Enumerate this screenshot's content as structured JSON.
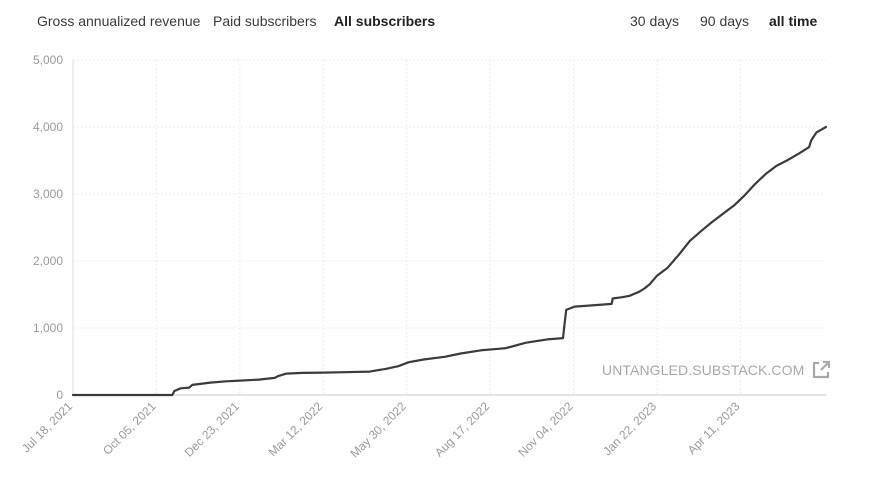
{
  "metric_tabs": [
    {
      "label": "Gross annualized revenue",
      "active": false
    },
    {
      "label": "Paid subscribers",
      "active": false
    },
    {
      "label": "All subscribers",
      "active": true
    }
  ],
  "range_tabs": [
    {
      "label": "30 days",
      "active": false
    },
    {
      "label": "90 days",
      "active": false
    },
    {
      "label": "all time",
      "active": true
    }
  ],
  "watermark": {
    "text": "UNTANGLED.SUBSTACK.COM",
    "icon": "external-link-icon"
  },
  "colors": {
    "line": "#3b3b3b",
    "grid": "#ececec",
    "tick_text": "#9a9a9a",
    "watermark": "#a8a8a8"
  },
  "chart_data": {
    "type": "line",
    "title": "",
    "xlabel": "",
    "ylabel": "",
    "ylim": [
      0,
      5000
    ],
    "yticks": [
      0,
      1000,
      2000,
      3000,
      4000,
      5000
    ],
    "ytick_labels": [
      "0",
      "1,000",
      "2,000",
      "3,000",
      "4,000",
      "5,000"
    ],
    "xlim": [
      "2021-07-18",
      "2023-07-01"
    ],
    "xticks": [
      "2021-07-18",
      "2021-10-05",
      "2021-12-23",
      "2022-03-12",
      "2022-05-30",
      "2022-08-17",
      "2022-11-04",
      "2023-01-22",
      "2023-04-11"
    ],
    "xtick_labels": [
      "Jul 18, 2021",
      "Oct 05, 2021",
      "Dec 23, 2021",
      "Mar 12, 2022",
      "May 30, 2022",
      "Aug 17, 2022",
      "Nov 04, 2022",
      "Jan 22, 2023",
      "Apr 11, 2023"
    ],
    "grid": true,
    "series": [
      {
        "x": [
          "2021-07-18",
          "2021-10-20",
          "2021-10-22",
          "2021-10-28",
          "2021-11-05",
          "2021-11-08",
          "2021-11-25",
          "2021-12-10",
          "2021-12-23",
          "2022-01-10",
          "2022-01-25",
          "2022-01-28",
          "2022-02-05",
          "2022-02-20",
          "2022-03-12",
          "2022-04-01",
          "2022-04-25",
          "2022-05-10",
          "2022-05-22",
          "2022-06-01",
          "2022-06-15",
          "2022-07-05",
          "2022-07-20",
          "2022-08-10",
          "2022-08-25",
          "2022-09-01",
          "2022-09-20",
          "2022-10-10",
          "2022-10-25",
          "2022-10-26",
          "2022-10-28",
          "2022-11-05",
          "2022-11-15",
          "2022-12-01",
          "2022-12-10",
          "2022-12-11",
          "2022-12-20",
          "2022-12-27",
          "2023-01-05",
          "2023-01-10",
          "2023-01-15",
          "2023-01-22",
          "2023-02-01",
          "2023-02-12",
          "2023-02-22",
          "2023-03-05",
          "2023-03-15",
          "2023-03-25",
          "2023-04-05",
          "2023-04-15",
          "2023-04-25",
          "2023-05-05",
          "2023-05-15",
          "2023-05-25",
          "2023-06-05",
          "2023-06-15",
          "2023-06-17",
          "2023-06-22",
          "2023-07-01"
        ],
        "y": [
          0,
          0,
          60,
          100,
          110,
          150,
          185,
          205,
          215,
          230,
          255,
          280,
          320,
          330,
          335,
          340,
          350,
          390,
          430,
          490,
          530,
          570,
          620,
          670,
          690,
          700,
          780,
          830,
          850,
          1000,
          1270,
          1320,
          1330,
          1350,
          1360,
          1440,
          1460,
          1480,
          1540,
          1590,
          1650,
          1780,
          1900,
          2100,
          2300,
          2450,
          2580,
          2700,
          2830,
          2980,
          3150,
          3300,
          3420,
          3500,
          3600,
          3700,
          3800,
          3920,
          4000
        ]
      }
    ]
  }
}
